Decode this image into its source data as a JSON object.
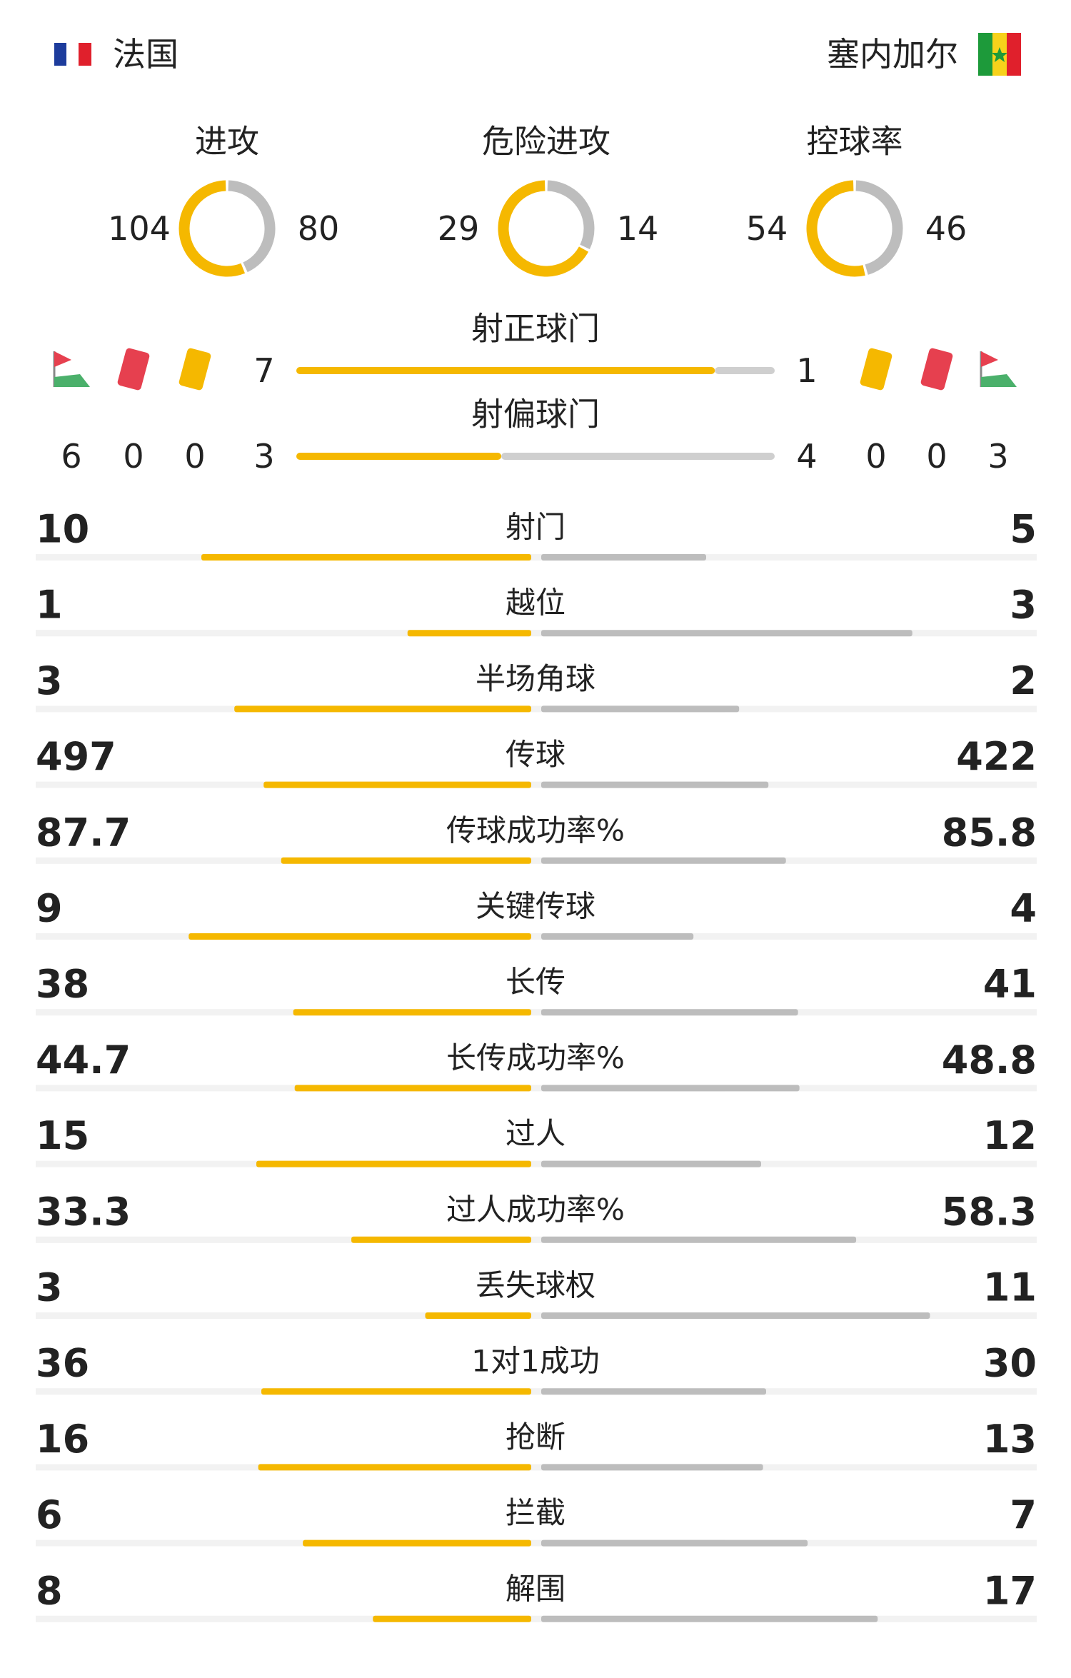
{
  "header": {
    "home": "法国",
    "away": "塞内加尔"
  },
  "colors": {
    "home": "#f5b800",
    "away": "#bdbdbd"
  },
  "rings": [
    {
      "label": "进攻",
      "home": 104,
      "away": 80
    },
    {
      "label": "危险进攻",
      "home": 29,
      "away": 14
    },
    {
      "label": "控球率",
      "home": 54,
      "away": 46
    }
  ],
  "shots": [
    {
      "label": "射正球门",
      "home": 7,
      "away": 1
    },
    {
      "label": "射偏球门",
      "home": 3,
      "away": 4
    }
  ],
  "home_discipline": {
    "corners": 6,
    "red_cards": 0,
    "yellow_cards": 0
  },
  "away_discipline": {
    "corners": 3,
    "red_cards": 0,
    "yellow_cards": 0
  },
  "stats": [
    {
      "label": "射门",
      "home": 10,
      "away": 5
    },
    {
      "label": "越位",
      "home": 1,
      "away": 3
    },
    {
      "label": "半场角球",
      "home": 3,
      "away": 2
    },
    {
      "label": "传球",
      "home": 497,
      "away": 422
    },
    {
      "label": "传球成功率%",
      "home": 87.7,
      "away": 85.8
    },
    {
      "label": "关键传球",
      "home": 9,
      "away": 4
    },
    {
      "label": "长传",
      "home": 38,
      "away": 41
    },
    {
      "label": "长传成功率%",
      "home": 44.7,
      "away": 48.8
    },
    {
      "label": "过人",
      "home": 15,
      "away": 12
    },
    {
      "label": "过人成功率%",
      "home": 33.3,
      "away": 58.3
    },
    {
      "label": "丢失球权",
      "home": 3,
      "away": 11
    },
    {
      "label": "1对1成功",
      "home": 36,
      "away": 30
    },
    {
      "label": "抢断",
      "home": 16,
      "away": 13
    },
    {
      "label": "拦截",
      "home": 6,
      "away": 7
    },
    {
      "label": "解围",
      "home": 8,
      "away": 17
    }
  ]
}
